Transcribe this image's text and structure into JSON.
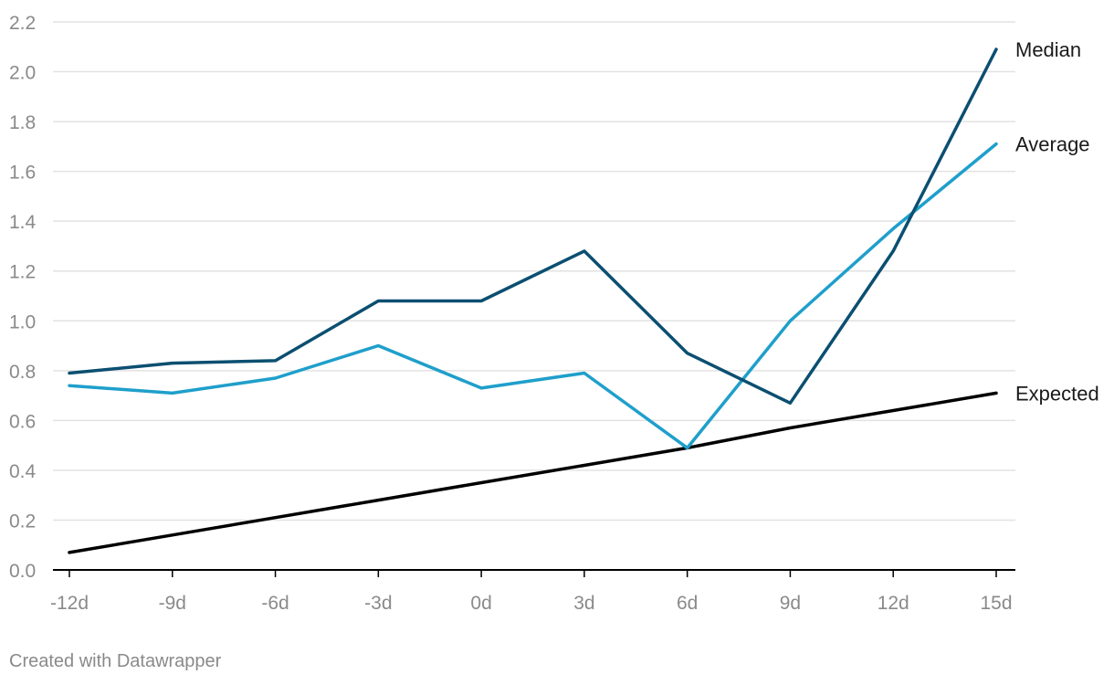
{
  "chart_data": {
    "type": "line",
    "title": "",
    "xlabel": "",
    "ylabel": "",
    "x": [
      "-12d",
      "-9d",
      "-6d",
      "-3d",
      "0d",
      "3d",
      "6d",
      "9d",
      "12d",
      "15d"
    ],
    "ylim": [
      0,
      2.2
    ],
    "y_ticks": [
      "0.0",
      "0.2",
      "0.4",
      "0.6",
      "0.8",
      "1.0",
      "1.2",
      "1.4",
      "1.6",
      "1.8",
      "2.0",
      "2.2"
    ],
    "grid": true,
    "legend": "direct labels at line ends (right)",
    "series": [
      {
        "name": "Median",
        "color": "#0b4f71",
        "values": [
          0.79,
          0.83,
          0.84,
          1.08,
          1.08,
          1.28,
          0.87,
          0.67,
          1.28,
          2.09
        ]
      },
      {
        "name": "Average",
        "color": "#1f9fcb",
        "values": [
          0.74,
          0.71,
          0.77,
          0.9,
          0.73,
          0.79,
          0.49,
          1.0,
          1.37,
          1.71
        ]
      },
      {
        "name": "Expected",
        "color": "#000000",
        "values": [
          0.07,
          0.14,
          0.21,
          0.28,
          0.35,
          0.42,
          0.49,
          0.57,
          0.64,
          0.71
        ]
      }
    ]
  },
  "footer": {
    "credit": "Created with Datawrapper"
  },
  "colors": {
    "grid": "#e2e2e2",
    "axis": "#000000",
    "tick_text": "#8a8a8a",
    "label_text": "#1a1a1a"
  }
}
